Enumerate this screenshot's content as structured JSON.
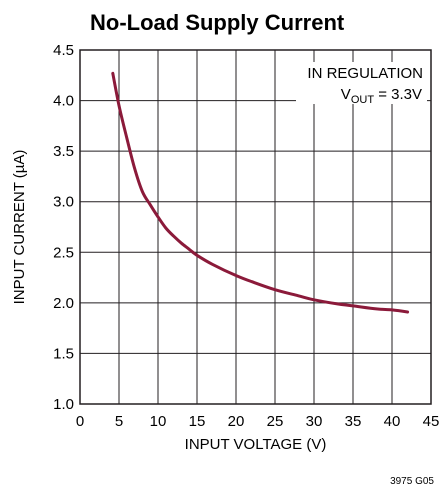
{
  "chart_data": {
    "type": "line",
    "title": "No-Load Supply Current",
    "xlabel": "INPUT VOLTAGE (V)",
    "ylabel": "INPUT CURRENT (µA)",
    "xlim": [
      0,
      45
    ],
    "ylim": [
      1.0,
      4.5
    ],
    "x_ticks": [
      0,
      5,
      10,
      15,
      20,
      25,
      30,
      35,
      40,
      45
    ],
    "y_ticks": [
      1.0,
      1.5,
      2.0,
      2.5,
      3.0,
      3.5,
      4.0,
      4.5
    ],
    "x_tick_labels": [
      "0",
      "5",
      "10",
      "15",
      "20",
      "25",
      "30",
      "35",
      "40",
      "45"
    ],
    "y_tick_labels": [
      "1.0",
      "1.5",
      "2.0",
      "2.5",
      "3.0",
      "3.5",
      "4.0",
      "4.5"
    ],
    "grid": true,
    "annotation": {
      "line1": "IN REGULATION",
      "line2_prefix": "V",
      "line2_sub": "OUT",
      "line2_suffix": " = 3.3V"
    },
    "figure_id": "3975 G05",
    "series": [
      {
        "color": "#8b1a3a",
        "x": [
          4.2,
          5,
          6,
          7,
          8,
          9,
          10,
          11,
          12,
          13,
          14,
          15,
          17,
          20,
          22,
          25,
          28,
          30,
          33,
          35,
          38,
          40,
          42
        ],
        "y": [
          4.27,
          3.95,
          3.63,
          3.33,
          3.1,
          2.97,
          2.85,
          2.74,
          2.66,
          2.59,
          2.53,
          2.47,
          2.38,
          2.27,
          2.21,
          2.13,
          2.07,
          2.03,
          1.99,
          1.97,
          1.94,
          1.93,
          1.91
        ]
      }
    ]
  }
}
